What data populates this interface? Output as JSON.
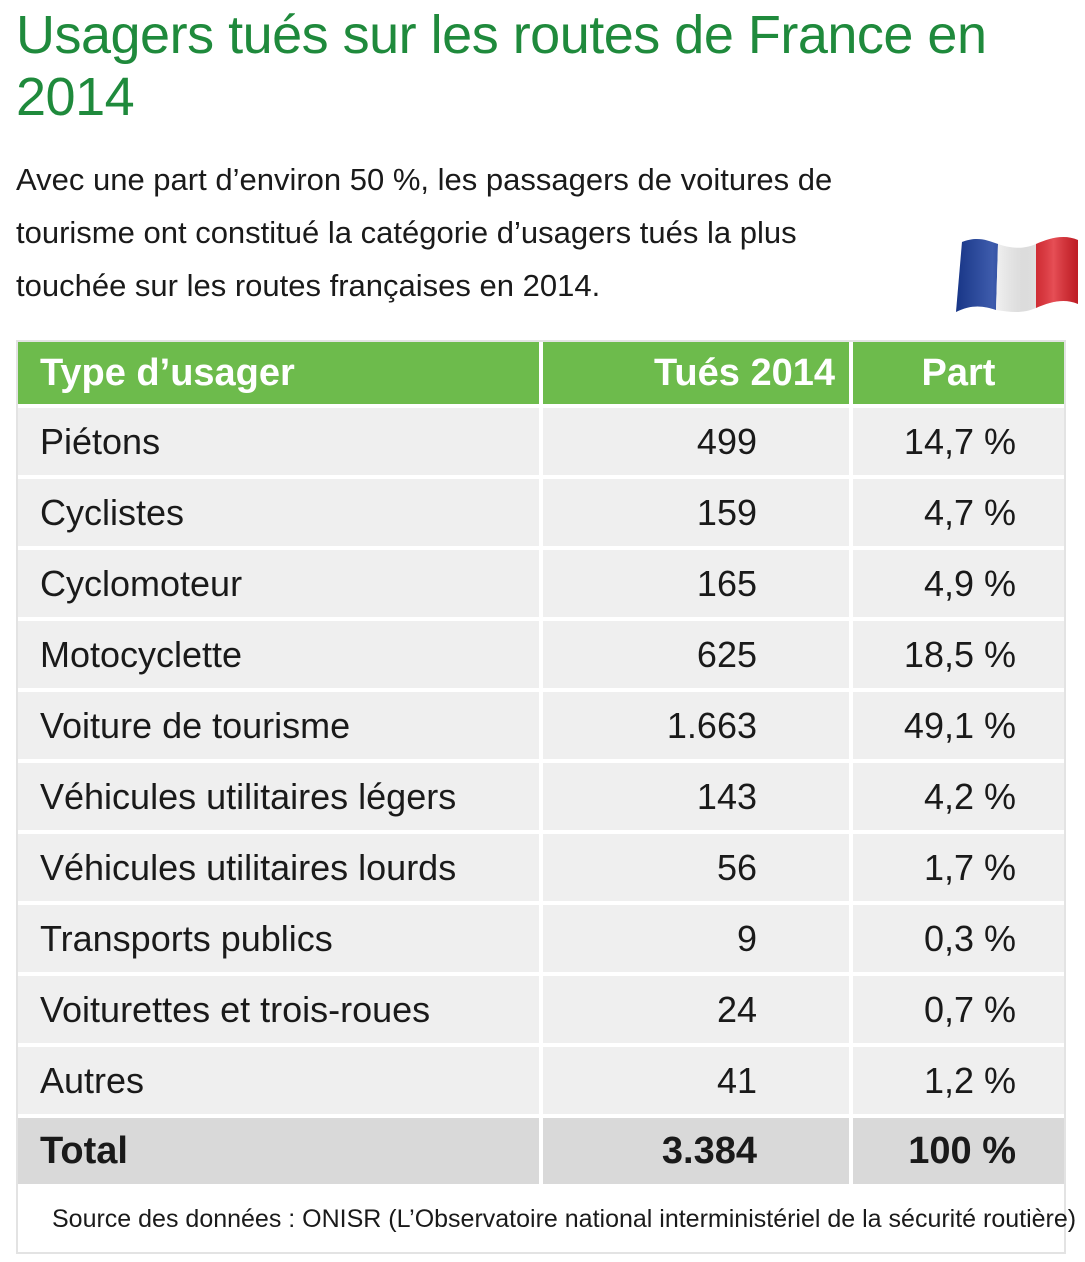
{
  "title": "Usagers tués sur les routes de France en 2014",
  "intro": "Avec une part d’environ 50 %, les passagers de voitures de tourisme ont constitué la catégorie d’usagers tués la plus touchée sur les routes françaises en 2014.",
  "flag": {
    "icon": "france-flag-icon",
    "colors": [
      "#1c3f9e",
      "#ffffff",
      "#e0222b"
    ]
  },
  "colors": {
    "title": "#1f8a3c",
    "header_bg": "#6dbb4c",
    "row_bg": "#efefef",
    "total_bg": "#d9d9d9"
  },
  "table": {
    "headers": {
      "type": "Type d’usager",
      "killed": "Tués 2014",
      "share": "Part"
    },
    "rows": [
      {
        "type": "Piétons",
        "killed": "499",
        "share": "14,7 %"
      },
      {
        "type": "Cyclistes",
        "killed": "159",
        "share": "4,7 %"
      },
      {
        "type": "Cyclomoteur",
        "killed": "165",
        "share": "4,9 %"
      },
      {
        "type": "Motocyclette",
        "killed": "625",
        "share": "18,5 %"
      },
      {
        "type": "Voiture de tourisme",
        "killed": "1.663",
        "share": "49,1 %"
      },
      {
        "type": "Véhicules utilitaires légers",
        "killed": "143",
        "share": "4,2 %"
      },
      {
        "type": "Véhicules utilitaires lourds",
        "killed": "56",
        "share": "1,7 %"
      },
      {
        "type": "Transports publics",
        "killed": "9",
        "share": "0,3 %"
      },
      {
        "type": "Voiturettes et trois-roues",
        "killed": "24",
        "share": "0,7 %"
      },
      {
        "type": "Autres",
        "killed": "41",
        "share": "1,2 %"
      }
    ],
    "total": {
      "type": "Total",
      "killed": "3.384",
      "share": "100 %"
    }
  },
  "source": "Source des données : ONISR (L’Observatoire national interministériel de la sécurité routière)"
}
